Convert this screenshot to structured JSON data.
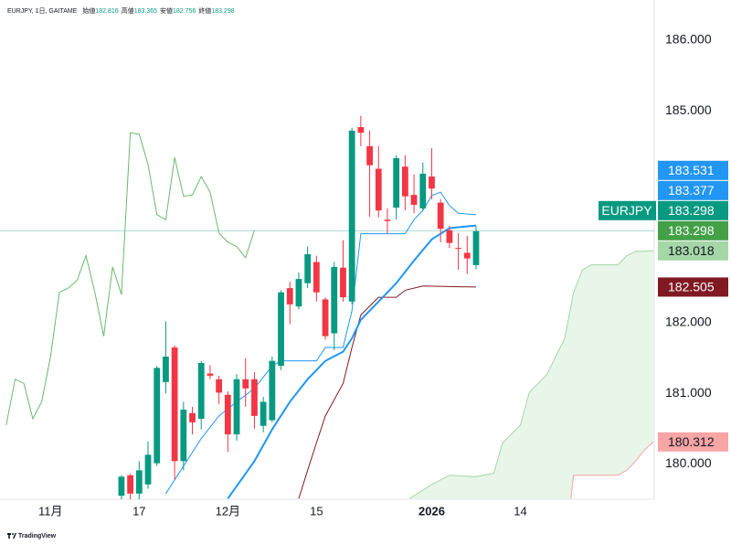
{
  "header": {
    "symbol": "EURJPY, 1日, GAITAME",
    "ohlc": [
      {
        "label": "始値",
        "value": 182.816
      },
      {
        "label": "高値",
        "value": 183.365
      },
      {
        "label": "安値",
        "value": 182.756
      },
      {
        "label": "終値",
        "value": 183.298
      }
    ]
  },
  "chart_data": {
    "type": "candlestick",
    "xlim": [
      -5.7,
      68.1
    ],
    "xticks": [
      {
        "value": 0,
        "label": "11月"
      },
      {
        "value": 10,
        "label": "17"
      },
      {
        "value": 20,
        "label": "12月"
      },
      {
        "value": 30,
        "label": "15"
      },
      {
        "value": 43,
        "label": "2026"
      },
      {
        "value": 53,
        "label": "14"
      }
    ],
    "ylim": [
      179.5,
      186.57
    ],
    "yticks": [
      {
        "value": 180,
        "label": "180.000"
      },
      {
        "value": 181,
        "label": "181.000"
      },
      {
        "value": 182,
        "label": "182.000"
      },
      {
        "value": 185,
        "label": "185.000"
      },
      {
        "value": 186,
        "label": "186.000"
      }
    ],
    "up_color": "#089981",
    "down_color": "#f23645",
    "candles": {
      "x": [
        8,
        9,
        10,
        11,
        12,
        13,
        14,
        15,
        16,
        17,
        18,
        19,
        20,
        21,
        22,
        23,
        24,
        25,
        26,
        27,
        28,
        29,
        30,
        31,
        32,
        33,
        34,
        35,
        36,
        37,
        38,
        39,
        40,
        41,
        42,
        43,
        44,
        45,
        46,
        47,
        48
      ],
      "open": [
        179.55,
        179.84,
        179.58,
        179.71,
        180.01,
        181.16,
        181.65,
        180.04,
        180.72,
        180.64,
        181.28,
        181.2,
        180.98,
        180.42,
        181.2,
        181.2,
        180.54,
        180.62,
        181.39,
        182.49,
        182.23,
        182.56,
        182.86,
        182.33,
        181.85,
        182.78,
        182.3,
        184.77,
        184.5,
        184.18,
        183.46,
        183.63,
        184.21,
        183.81,
        183.62,
        184.07,
        183.7,
        183.31,
        183.06,
        182.99,
        182.816
      ],
      "high": [
        179.84,
        179.86,
        180.04,
        180.32,
        181.39,
        182.02,
        181.68,
        180.88,
        180.81,
        181.46,
        181.4,
        181.25,
        181.03,
        181.27,
        181.5,
        181.3,
        180.95,
        181.52,
        182.46,
        182.58,
        182.71,
        183.08,
        182.95,
        182.36,
        182.86,
        183.17,
        184.76,
        184.93,
        184.72,
        184.5,
        183.62,
        184.37,
        184.37,
        184.1,
        184.27,
        184.47,
        183.75,
        183.37,
        183.27,
        183.23,
        183.365
      ],
      "low": [
        179.5,
        179.5,
        179.5,
        179.65,
        179.97,
        181.0,
        179.78,
        179.91,
        180.42,
        180.49,
        181.2,
        180.85,
        180.17,
        180.33,
        180.81,
        180.5,
        180.45,
        180.59,
        181.33,
        181.98,
        182.19,
        182.49,
        182.3,
        181.76,
        181.61,
        182.3,
        182.26,
        184.5,
        183.5,
        183.49,
        183.26,
        183.46,
        183.59,
        183.55,
        183.59,
        183.75,
        183.14,
        183.06,
        182.75,
        182.69,
        182.756
      ],
      "close": [
        179.82,
        179.58,
        179.91,
        180.13,
        181.36,
        181.52,
        180.04,
        180.77,
        180.59,
        181.43,
        181.25,
        181.01,
        180.42,
        181.2,
        181.07,
        180.68,
        180.88,
        181.46,
        182.43,
        182.26,
        182.62,
        182.97,
        182.43,
        181.81,
        182.79,
        182.36,
        184.72,
        184.69,
        184.23,
        183.59,
        183.44,
        184.33,
        183.79,
        183.67,
        184.11,
        183.9,
        183.33,
        183.13,
        183.05,
        182.91,
        183.298
      ]
    },
    "lines": [
      {
        "color": "#66bb6a",
        "width": 1,
        "x": [
          -5,
          -4,
          -3,
          -2,
          -1,
          0,
          1,
          2,
          3,
          4,
          5,
          6,
          7,
          8,
          9,
          10,
          11,
          12,
          13,
          14,
          15,
          16,
          17,
          18,
          19,
          20,
          21,
          22,
          23
        ],
        "values": [
          180.55,
          181.2,
          181.14,
          180.64,
          180.88,
          181.52,
          182.43,
          182.49,
          182.6,
          182.95,
          182.43,
          181.81,
          182.79,
          182.4,
          184.69,
          184.67,
          184.24,
          183.53,
          183.46,
          184.34,
          183.79,
          183.81,
          184.07,
          183.85,
          183.27,
          183.14,
          183.08,
          182.92,
          183.31
        ]
      },
      {
        "color": "#2196f3",
        "width": 1,
        "x": [
          13,
          15,
          17,
          19,
          21,
          23,
          25,
          26,
          30,
          31,
          33,
          34,
          35,
          36,
          40,
          41,
          42,
          43,
          44,
          45,
          46,
          48
        ],
        "values": [
          179.58,
          179.97,
          180.36,
          180.68,
          180.88,
          181.07,
          181.39,
          181.46,
          181.46,
          181.65,
          181.65,
          182.17,
          183.26,
          183.26,
          183.26,
          183.46,
          183.59,
          183.8,
          183.85,
          183.66,
          183.55,
          183.531
        ]
      },
      {
        "color": "#801922",
        "width": 1,
        "x": [
          28,
          29,
          30,
          31,
          33,
          34,
          35,
          37,
          39,
          40,
          42,
          48
        ],
        "values": [
          179.51,
          179.91,
          180.3,
          180.68,
          181.14,
          181.65,
          182.11,
          182.36,
          182.36,
          182.46,
          182.52,
          182.505
        ]
      },
      {
        "color": "#2196f3",
        "width": 2,
        "x": [
          20,
          23,
          25,
          27,
          29,
          31,
          33,
          34,
          35,
          37,
          39,
          41,
          43,
          45,
          48
        ],
        "values": [
          179.51,
          180.04,
          180.49,
          180.88,
          181.2,
          181.46,
          181.59,
          181.78,
          182.04,
          182.3,
          182.56,
          182.88,
          183.18,
          183.34,
          183.377
        ]
      }
    ],
    "cloud": {
      "fill": "#e8f5e9",
      "span_a": {
        "color": "#a5d6a7",
        "x": [
          40.5,
          43,
          45,
          48,
          50,
          51,
          53,
          54,
          56,
          58,
          59,
          60,
          61,
          64,
          65,
          66,
          68
        ],
        "values": [
          179.51,
          179.71,
          179.84,
          179.82,
          179.87,
          180.3,
          180.55,
          181.01,
          181.27,
          181.78,
          182.43,
          182.75,
          182.82,
          182.82,
          182.95,
          183.01,
          183.018
        ]
      },
      "span_b": {
        "color": "#f7a5a5",
        "x": [
          58.7,
          59,
          64,
          65,
          66,
          67,
          68
        ],
        "values": [
          179.51,
          179.84,
          179.84,
          179.91,
          180.04,
          180.2,
          180.312
        ]
      }
    },
    "price_labels": [
      {
        "value": 183.531,
        "label": "183.531",
        "color": "#2196f3",
        "text_color": "#ffffff"
      },
      {
        "value": 183.377,
        "label": "183.377",
        "color": "#2196f3",
        "text_color": "#ffffff"
      },
      {
        "value": 183.298,
        "label": "183.298",
        "tag": "EURJPY",
        "color": "#089981",
        "text_color": "#ffffff"
      },
      {
        "value": 183.298,
        "label": "183.298",
        "color": "#43a047",
        "text_color": "#ffffff"
      },
      {
        "value": 183.018,
        "label": "183.018",
        "color": "#a5d6a7",
        "text_color": "#131722"
      },
      {
        "value": 182.505,
        "label": "182.505",
        "color": "#801922",
        "text_color": "#ffffff"
      },
      {
        "value": 180.312,
        "label": "180.312",
        "color": "#f7a5a5",
        "text_color": "#131722"
      }
    ]
  },
  "footer": {
    "brand": "TradingView"
  }
}
